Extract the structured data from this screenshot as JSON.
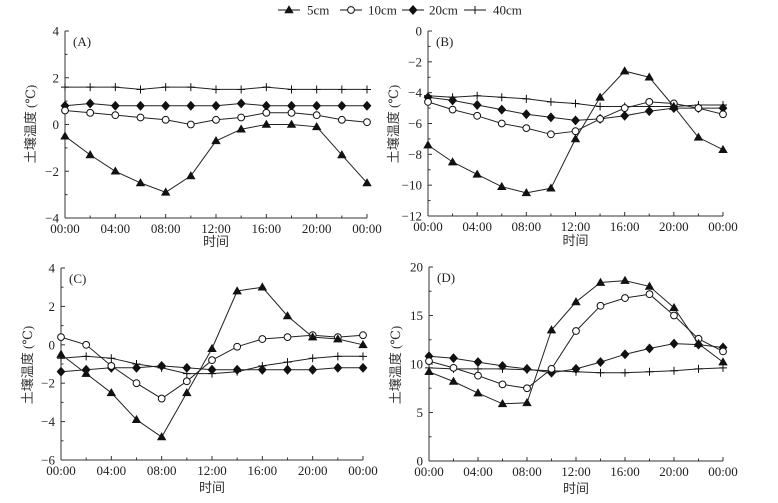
{
  "legend": [
    {
      "name": "5cm",
      "marker": "filled-triangle"
    },
    {
      "name": "10cm",
      "marker": "open-circle"
    },
    {
      "name": "20cm",
      "marker": "filled-diamond"
    },
    {
      "name": "40cm",
      "marker": "plus"
    }
  ],
  "chart_data": [
    {
      "type": "line",
      "panel_label": "(A)",
      "xlabel": "时间",
      "ylabel": "土壤温度 (℃)",
      "x": [
        "00:00",
        "02:00",
        "04:00",
        "06:00",
        "08:00",
        "10:00",
        "12:00",
        "14:00",
        "16:00",
        "18:00",
        "20:00",
        "22:00",
        "00:00"
      ],
      "x_tick_labels": [
        "00:00",
        "04:00",
        "08:00",
        "12:00",
        "16:00",
        "20:00",
        "00:00"
      ],
      "ylim": [
        -4,
        4
      ],
      "y_ticks": [
        -4,
        -2,
        0,
        2,
        4
      ],
      "grid": false,
      "series": [
        {
          "name": "5cm",
          "values": [
            -0.5,
            -1.3,
            -2.0,
            -2.5,
            -2.9,
            -2.2,
            -0.7,
            -0.2,
            0.0,
            0.0,
            -0.1,
            -1.3,
            -2.5
          ]
        },
        {
          "name": "10cm",
          "values": [
            0.6,
            0.5,
            0.4,
            0.3,
            0.2,
            0.0,
            0.2,
            0.3,
            0.5,
            0.5,
            0.4,
            0.2,
            0.1
          ]
        },
        {
          "name": "20cm",
          "values": [
            0.8,
            0.9,
            0.8,
            0.8,
            0.8,
            0.8,
            0.8,
            0.9,
            0.8,
            0.8,
            0.8,
            0.8,
            0.8
          ]
        },
        {
          "name": "40cm",
          "values": [
            1.6,
            1.6,
            1.6,
            1.5,
            1.6,
            1.6,
            1.5,
            1.5,
            1.6,
            1.5,
            1.5,
            1.5,
            1.5
          ]
        }
      ]
    },
    {
      "type": "line",
      "panel_label": "(B)",
      "xlabel": "时间",
      "ylabel": "土壤温度 (℃)",
      "x": [
        "00:00",
        "02:00",
        "04:00",
        "06:00",
        "08:00",
        "10:00",
        "12:00",
        "14:00",
        "16:00",
        "18:00",
        "20:00",
        "22:00",
        "00:00"
      ],
      "x_tick_labels": [
        "00:00",
        "04:00",
        "08:00",
        "12:00",
        "16:00",
        "20:00",
        "00:00"
      ],
      "ylim": [
        -12,
        0
      ],
      "y_ticks": [
        -12,
        -10,
        -8,
        -6,
        -4,
        -2,
        0
      ],
      "grid": false,
      "series": [
        {
          "name": "5cm",
          "values": [
            -7.4,
            -8.5,
            -9.3,
            -10.1,
            -10.5,
            -10.2,
            -7.0,
            -4.3,
            -2.6,
            -3.0,
            -4.9,
            -6.9,
            -7.7
          ]
        },
        {
          "name": "10cm",
          "values": [
            -4.6,
            -5.1,
            -5.5,
            -6.0,
            -6.3,
            -6.7,
            -6.5,
            -5.7,
            -5.0,
            -4.6,
            -4.7,
            -5.0,
            -5.4
          ]
        },
        {
          "name": "20cm",
          "values": [
            -4.3,
            -4.5,
            -4.8,
            -5.1,
            -5.4,
            -5.6,
            -5.8,
            -5.7,
            -5.5,
            -5.2,
            -5.0,
            -5.0,
            -5.0
          ]
        },
        {
          "name": "40cm",
          "values": [
            -4.2,
            -4.3,
            -4.2,
            -4.3,
            -4.4,
            -4.6,
            -4.7,
            -4.9,
            -4.9,
            -4.9,
            -4.9,
            -4.8,
            -4.8
          ]
        }
      ]
    },
    {
      "type": "line",
      "panel_label": "(C)",
      "xlabel": "时间",
      "ylabel": "土壤温度 (℃)",
      "x": [
        "00:00",
        "02:00",
        "04:00",
        "06:00",
        "08:00",
        "10:00",
        "12:00",
        "14:00",
        "16:00",
        "18:00",
        "20:00",
        "22:00",
        "00:00"
      ],
      "x_tick_labels": [
        "00:00",
        "04:00",
        "08:00",
        "12:00",
        "16:00",
        "20:00",
        "00:00"
      ],
      "ylim": [
        -6,
        4
      ],
      "y_ticks": [
        -6,
        -4,
        -2,
        0,
        2,
        4
      ],
      "grid": false,
      "series": [
        {
          "name": "5cm",
          "values": [
            -0.5,
            -1.5,
            -2.5,
            -3.9,
            -4.8,
            -2.5,
            -0.2,
            2.8,
            3.0,
            1.5,
            0.4,
            0.3,
            0.0
          ]
        },
        {
          "name": "10cm",
          "values": [
            0.4,
            0.0,
            -1.1,
            -2.0,
            -2.8,
            -1.9,
            -0.8,
            -0.1,
            0.3,
            0.4,
            0.5,
            0.4,
            0.5
          ]
        },
        {
          "name": "20cm",
          "values": [
            -1.4,
            -1.3,
            -1.2,
            -1.2,
            -1.1,
            -1.2,
            -1.3,
            -1.3,
            -1.3,
            -1.3,
            -1.3,
            -1.2,
            -1.2
          ]
        },
        {
          "name": "40cm",
          "values": [
            -0.7,
            -0.6,
            -0.7,
            -1.0,
            -1.2,
            -1.5,
            -1.5,
            -1.4,
            -1.1,
            -0.9,
            -0.7,
            -0.6,
            -0.6
          ]
        }
      ]
    },
    {
      "type": "line",
      "panel_label": "(D)",
      "xlabel": "时间",
      "ylabel": "土壤温度 (℃)",
      "x": [
        "00:00",
        "02:00",
        "04:00",
        "06:00",
        "08:00",
        "10:00",
        "12:00",
        "14:00",
        "16:00",
        "18:00",
        "20:00",
        "22:00",
        "00:00"
      ],
      "x_tick_labels": [
        "00:00",
        "04:00",
        "08:00",
        "12:00",
        "16:00",
        "20:00",
        "00:00"
      ],
      "ylim": [
        0,
        20
      ],
      "y_ticks": [
        0,
        5,
        10,
        15,
        20
      ],
      "grid": false,
      "series": [
        {
          "name": "5cm",
          "values": [
            9.2,
            8.2,
            7.0,
            5.9,
            6.0,
            13.5,
            16.4,
            18.4,
            18.6,
            18.0,
            15.8,
            12.1,
            10.2
          ]
        },
        {
          "name": "10cm",
          "values": [
            10.3,
            9.6,
            8.8,
            7.9,
            7.5,
            9.5,
            13.4,
            16.0,
            16.8,
            17.2,
            15.0,
            12.6,
            11.3
          ]
        },
        {
          "name": "20cm",
          "values": [
            10.8,
            10.6,
            10.2,
            9.8,
            9.5,
            9.1,
            9.5,
            10.2,
            11.0,
            11.6,
            12.1,
            12.0,
            11.7
          ]
        },
        {
          "name": "40cm",
          "values": [
            9.6,
            9.5,
            9.5,
            9.5,
            9.4,
            9.3,
            9.2,
            9.1,
            9.1,
            9.2,
            9.3,
            9.5,
            9.6
          ]
        }
      ]
    }
  ]
}
